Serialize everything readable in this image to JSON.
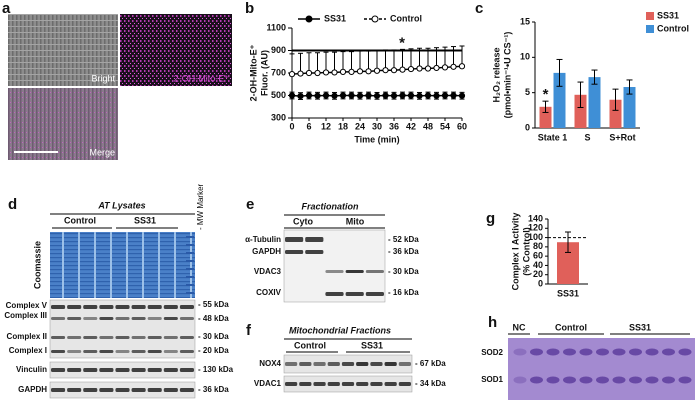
{
  "panel_a": {
    "label": "a",
    "bright": "Bright",
    "probe": "2-OH-Mito-E⁺",
    "merge": "Merge"
  },
  "chart_data": [
    {
      "type": "line",
      "label": "b",
      "ylabel": [
        "2-OH-Mito-E⁺",
        "Fluor. (AU)"
      ],
      "xlabel": "Time (min)",
      "x": [
        0,
        3,
        6,
        9,
        12,
        15,
        18,
        21,
        24,
        27,
        30,
        33,
        36,
        39,
        42,
        45,
        48,
        51,
        54,
        57,
        60
      ],
      "xlim": [
        0,
        60
      ],
      "xticks": [
        0,
        6,
        12,
        18,
        24,
        30,
        36,
        42,
        48,
        54,
        60
      ],
      "ylim": [
        300,
        1100
      ],
      "yticks": [
        300,
        500,
        700,
        900,
        1100
      ],
      "annotation": {
        "text": "*",
        "y": 900
      },
      "series": [
        {
          "name": "SS31",
          "color": "#000000",
          "marker": "filled",
          "errorbar": "both",
          "values": [
            500,
            495,
            500,
            498,
            500,
            497,
            500,
            500,
            498,
            500,
            497,
            500,
            498,
            500,
            500,
            497,
            500,
            498,
            500,
            500,
            498
          ],
          "errors": [
            30,
            30,
            30,
            30,
            30,
            30,
            30,
            30,
            30,
            30,
            30,
            30,
            30,
            30,
            30,
            30,
            30,
            30,
            30,
            30,
            30
          ]
        },
        {
          "name": "Control",
          "color": "#000000",
          "marker": "open",
          "errorbar": "up",
          "values": [
            690,
            695,
            700,
            700,
            705,
            705,
            710,
            710,
            715,
            715,
            720,
            725,
            725,
            730,
            735,
            740,
            740,
            745,
            750,
            755,
            760
          ],
          "errors": [
            180,
            180,
            180,
            180,
            180,
            180,
            180,
            180,
            180,
            180,
            180,
            180,
            180,
            180,
            180,
            180,
            180,
            180,
            180,
            180,
            180
          ]
        }
      ]
    },
    {
      "type": "bar",
      "label": "c",
      "ylabel": [
        "H₂O₂ release",
        "(pmol•min⁻¹•U CS⁻¹)"
      ],
      "categories": [
        "State 1",
        "S",
        "S+Rot"
      ],
      "ylim": [
        0,
        15
      ],
      "yticks": [
        0,
        5,
        10,
        15
      ],
      "annotation": {
        "text": "*",
        "series": 0,
        "index": 0
      },
      "series": [
        {
          "name": "SS31",
          "color": "#e0605a",
          "values": [
            3,
            4.7,
            4
          ],
          "errors": [
            0.8,
            1.8,
            1.5
          ]
        },
        {
          "name": "Control",
          "color": "#3f8fd6",
          "values": [
            7.8,
            7.2,
            5.8
          ],
          "errors": [
            1.9,
            1,
            1
          ]
        }
      ]
    },
    {
      "type": "bar",
      "label": "g",
      "ylabel": [
        "Complex I Activity",
        "(% Control)"
      ],
      "categories": [
        "SS31"
      ],
      "ylim": [
        0,
        140
      ],
      "yticks": [
        0,
        20,
        40,
        60,
        80,
        100,
        120,
        140
      ],
      "refline": 100,
      "series": [
        {
          "name": "SS31",
          "color": "#e0605a",
          "values": [
            90
          ],
          "errors": [
            22
          ]
        }
      ]
    }
  ],
  "panel_d": {
    "label": "d",
    "title": "AT Lysates",
    "groups": [
      "Control",
      "SS31"
    ],
    "marker": "- MW Marker",
    "gel": "Coomassie",
    "blots": [
      {
        "names": [
          "Complex V",
          "Complex III",
          "Complex II",
          "Complex I"
        ],
        "sizes": [
          "- 55 kDa",
          "- 48 kDa",
          "- 30 kDa",
          "- 20 kDa"
        ]
      },
      {
        "names": [
          "Vinculin"
        ],
        "sizes": [
          "- 130 kDa"
        ]
      },
      {
        "names": [
          "GAPDH"
        ],
        "sizes": [
          "- 36 kDa"
        ]
      }
    ]
  },
  "panel_e": {
    "label": "e",
    "title": "Fractionation",
    "groups": [
      "Cyto",
      "Mito"
    ],
    "proteins": [
      "α-Tubulin",
      "GAPDH",
      "VDAC3",
      "COXIV"
    ],
    "sizes": [
      "- 52 kDa",
      "- 36 kDa",
      "- 30 kDa",
      "- 16 kDa"
    ]
  },
  "panel_f": {
    "label": "f",
    "title": "Mitochondrial Fractions",
    "groups": [
      "Control",
      "SS31"
    ],
    "proteins": [
      "NOX4",
      "VDAC1"
    ],
    "sizes": [
      "- 67 kDa",
      "- 34 kDa"
    ]
  },
  "panel_h": {
    "label": "h",
    "groups": [
      "NC",
      "Control",
      "SS31"
    ],
    "bands": [
      "SOD2",
      "SOD1"
    ]
  }
}
